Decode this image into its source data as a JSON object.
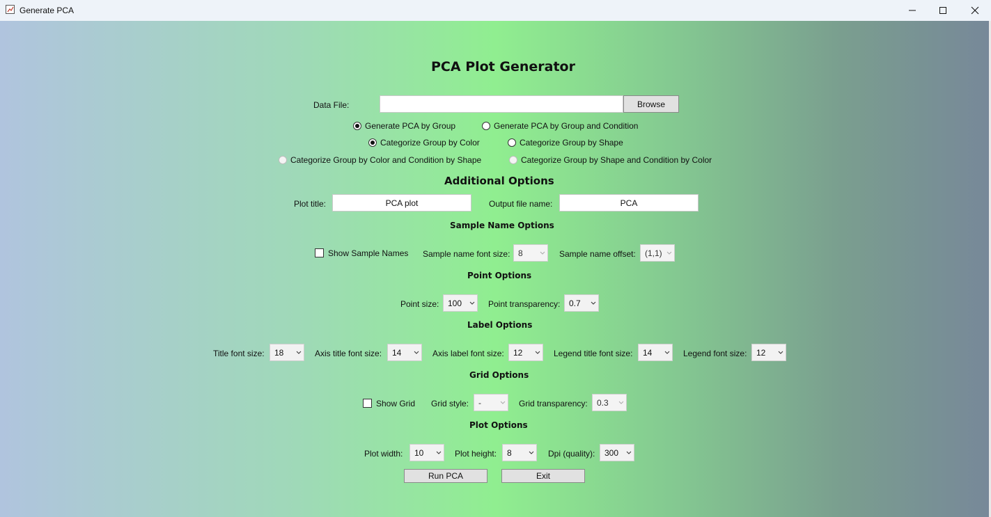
{
  "window": {
    "title": "Generate PCA"
  },
  "header": {
    "title": "PCA Plot Generator"
  },
  "data_file": {
    "label": "Data File:",
    "value": "",
    "browse_label": "Browse"
  },
  "pca_mode": {
    "by_group": "Generate PCA by Group",
    "by_group_condition": "Generate PCA by Group and Condition"
  },
  "categorize": {
    "color": "Categorize Group by Color",
    "shape": "Categorize Group by Shape",
    "color_condition_shape": "Categorize Group by Color and Condition by Shape",
    "shape_condition_color": "Categorize Group by Shape and Condition by Color"
  },
  "additional": {
    "title": "Additional Options",
    "plot_title_label": "Plot title:",
    "plot_title_value": "PCA plot",
    "output_label": "Output file name:",
    "output_value": "PCA"
  },
  "sample_name": {
    "title": "Sample Name Options",
    "show_label": "Show Sample Names",
    "font_size_label": "Sample name font size:",
    "font_size_value": "8",
    "offset_label": "Sample name offset:",
    "offset_value": "(1,1)"
  },
  "point": {
    "title": "Point Options",
    "size_label": "Point size:",
    "size_value": "100",
    "transparency_label": "Point transparency:",
    "transparency_value": "0.7"
  },
  "label_opts": {
    "title": "Label Options",
    "title_font_label": "Title font size:",
    "title_font_value": "18",
    "axis_title_label": "Axis title font size:",
    "axis_title_value": "14",
    "axis_label_label": "Axis label font size:",
    "axis_label_value": "12",
    "legend_title_label": "Legend title font size:",
    "legend_title_value": "14",
    "legend_font_label": "Legend font size:",
    "legend_font_value": "12"
  },
  "grid": {
    "title": "Grid Options",
    "show_label": "Show Grid",
    "style_label": "Grid style:",
    "style_value": "-",
    "transparency_label": "Grid transparency:",
    "transparency_value": "0.3"
  },
  "plot": {
    "title": "Plot Options",
    "width_label": "Plot width:",
    "width_value": "10",
    "height_label": "Plot height:",
    "height_value": "8",
    "dpi_label": "Dpi (quality):",
    "dpi_value": "300"
  },
  "actions": {
    "run_label": "Run PCA",
    "exit_label": "Exit"
  }
}
